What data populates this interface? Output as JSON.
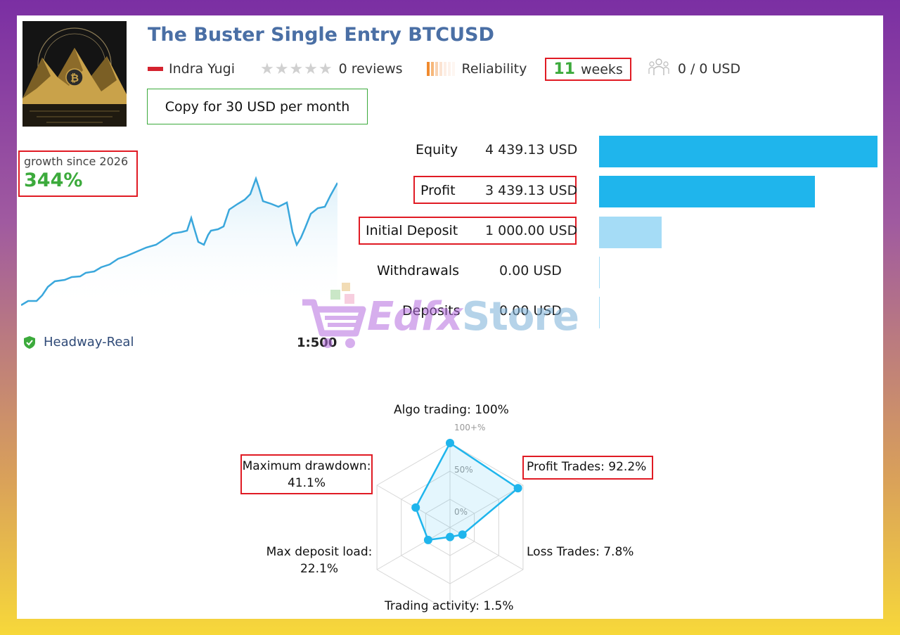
{
  "header": {
    "title": "The Buster Single Entry BTCUSD",
    "author": "Indra Yugi",
    "reviews": "0 reviews",
    "reliability_label": "Reliability",
    "weeks_number": "11",
    "weeks_unit": "weeks",
    "subscribers": "0 / 0 USD",
    "copy_button": "Copy for 30 USD per month"
  },
  "growth": {
    "label": "growth since 2026",
    "value": "344%"
  },
  "account": {
    "broker": "Headway-Real",
    "leverage": "1:500"
  },
  "stats": [
    {
      "label": "Equity",
      "value": "4 439.13 USD",
      "amount": 4439.13,
      "color": "#1fb5ec"
    },
    {
      "label": "Profit",
      "value": "3 439.13 USD",
      "amount": 3439.13,
      "color": "#1fb5ec"
    },
    {
      "label": "Initial Deposit",
      "value": "1 000.00 USD",
      "amount": 1000.0,
      "color": "#a5dcf6"
    },
    {
      "label": "Withdrawals",
      "value": "0.00 USD",
      "amount": 0.0,
      "color": "#a5dcf6"
    },
    {
      "label": "Deposits",
      "value": "0.00 USD",
      "amount": 0.0,
      "color": "#a5dcf6"
    }
  ],
  "watermark": {
    "part1": "Edfx",
    "part2": "Store"
  },
  "radar": {
    "grid_labels": [
      "100+%",
      "50%",
      "0%"
    ],
    "algo_trading": "Algo trading: 100%",
    "profit_trades": "Profit Trades: 92.2%",
    "loss_trades": "Loss Trades: 7.8%",
    "trading_activity": "Trading activity: 1.5%",
    "max_deposit_load_label": "Max deposit load:",
    "max_deposit_load_value": "22.1%",
    "max_drawdown_label": "Maximum drawdown:",
    "max_drawdown_value": "41.1%",
    "values": [
      100,
      92.2,
      7.8,
      1.5,
      22.1,
      41.1
    ]
  },
  "chart_data": {
    "type": "radar",
    "axes": [
      "Algo trading",
      "Profit Trades",
      "Loss Trades",
      "Trading activity",
      "Max deposit load",
      "Maximum drawdown"
    ],
    "values": [
      100,
      92.2,
      7.8,
      1.5,
      22.1,
      41.1
    ],
    "range": [
      0,
      100
    ]
  },
  "colors": {
    "accent_blue": "#1fb5ec",
    "title_blue": "#4a6fa5",
    "green": "#3caa3c",
    "highlight_red": "#e01b24"
  }
}
